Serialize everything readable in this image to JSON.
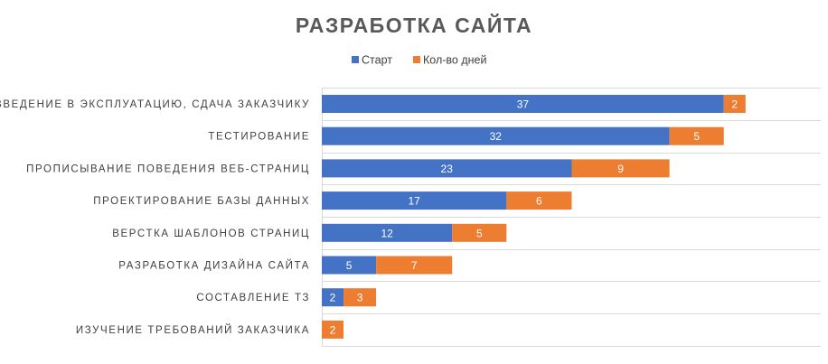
{
  "chart_data": {
    "type": "bar",
    "orientation": "horizontal",
    "stacked": true,
    "title": "РАЗРАБОТКА САЙТА",
    "categories": [
      "ВВЕДЕНИЕ В ЭКСПЛУАТАЦИЮ, СДАЧА ЗАКАЗЧИКУ",
      "ТЕСТИРОВАНИЕ",
      "ПРОПИСЫВАНИЕ ПОВЕДЕНИЯ ВЕБ-СТРАНИЦ",
      "ПРОЕКТИРОВАНИЕ БАЗЫ ДАННЫХ",
      "ВЕРСТКА ШАБЛОНОВ СТРАНИЦ",
      "РАЗРАБОТКА ДИЗАЙНА САЙТА",
      "СОСТАВЛЕНИЕ ТЗ",
      "ИЗУЧЕНИЕ ТРЕБОВАНИЙ ЗАКАЗЧИКА"
    ],
    "series": [
      {
        "name": "Старт",
        "color": "#4472c4",
        "values": [
          37,
          32,
          23,
          17,
          12,
          5,
          2,
          0
        ]
      },
      {
        "name": "Кол-во дней",
        "color": "#ed7d31",
        "values": [
          2,
          5,
          9,
          6,
          5,
          7,
          3,
          2
        ]
      }
    ],
    "xlim": [
      0,
      45
    ],
    "legend_position": "top",
    "grid": true,
    "data_labels": true
  }
}
